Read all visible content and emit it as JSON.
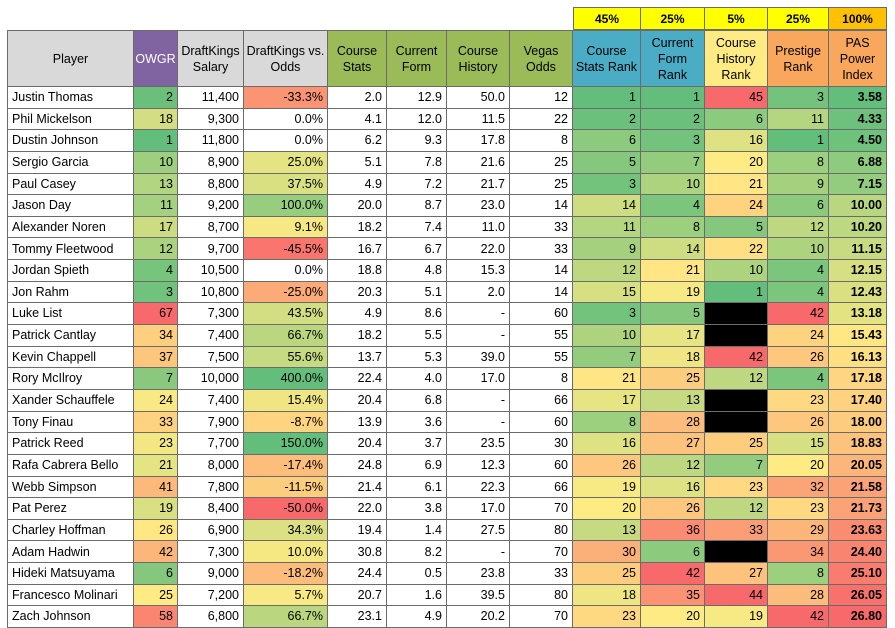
{
  "weights": {
    "course_stats": "45%",
    "current_form": "25%",
    "course_history": "5%",
    "prestige": "25%",
    "pas": "100%"
  },
  "headers": {
    "player": "Player",
    "owgr": "OWGR",
    "dk_salary": "DraftKings Salary",
    "dk_vs_odds": "DraftKings vs. Odds",
    "course_stats": "Course Stats",
    "current_form": "Current Form",
    "course_history": "Course History",
    "vegas_odds": "Vegas Odds",
    "course_stats_rank": "Course Stats Rank",
    "current_form_rank": "Current Form Rank",
    "course_history_rank": "Course History Rank",
    "prestige_rank": "Prestige Rank",
    "pas_power_index": "PAS Power Index"
  },
  "colors": {
    "header_bg": "#d9d9d9",
    "weights_bg": "#ffff00",
    "pas_weight_bg": "#ffc000",
    "owgr_header_bg": "#8064a2",
    "header_green": "#9bbb59",
    "header_teal": "#4bacc6",
    "header_yellow": "#ffeb84",
    "header_orange": "#f8a75d",
    "missing_cell": "#000000"
  },
  "rows": [
    {
      "player": "Justin Thomas",
      "owgr": "2",
      "salary": "11,400",
      "vs_odds": "-33.3%",
      "course_stats": "2.0",
      "current_form": "12.9",
      "course_history": "50.0",
      "vegas": "12",
      "cs_rank": "1",
      "cf_rank": "1",
      "ch_rank": "45",
      "prestige": "3",
      "pas": "3.58"
    },
    {
      "player": "Phil Mickelson",
      "owgr": "18",
      "salary": "9,300",
      "vs_odds": "0.0%",
      "course_stats": "4.1",
      "current_form": "12.0",
      "course_history": "11.5",
      "vegas": "22",
      "cs_rank": "2",
      "cf_rank": "2",
      "ch_rank": "6",
      "prestige": "11",
      "pas": "4.33"
    },
    {
      "player": "Dustin Johnson",
      "owgr": "1",
      "salary": "11,800",
      "vs_odds": "0.0%",
      "course_stats": "6.2",
      "current_form": "9.3",
      "course_history": "17.8",
      "vegas": "8",
      "cs_rank": "6",
      "cf_rank": "3",
      "ch_rank": "16",
      "prestige": "1",
      "pas": "4.50"
    },
    {
      "player": "Sergio Garcia",
      "owgr": "10",
      "salary": "8,900",
      "vs_odds": "25.0%",
      "course_stats": "5.1",
      "current_form": "7.8",
      "course_history": "21.6",
      "vegas": "25",
      "cs_rank": "5",
      "cf_rank": "7",
      "ch_rank": "20",
      "prestige": "8",
      "pas": "6.88"
    },
    {
      "player": "Paul Casey",
      "owgr": "13",
      "salary": "8,800",
      "vs_odds": "37.5%",
      "course_stats": "4.9",
      "current_form": "7.2",
      "course_history": "21.7",
      "vegas": "25",
      "cs_rank": "3",
      "cf_rank": "10",
      "ch_rank": "21",
      "prestige": "9",
      "pas": "7.15"
    },
    {
      "player": "Jason Day",
      "owgr": "11",
      "salary": "9,200",
      "vs_odds": "100.0%",
      "course_stats": "20.0",
      "current_form": "8.7",
      "course_history": "23.0",
      "vegas": "14",
      "cs_rank": "14",
      "cf_rank": "4",
      "ch_rank": "24",
      "prestige": "6",
      "pas": "10.00"
    },
    {
      "player": "Alexander Noren",
      "owgr": "17",
      "salary": "8,700",
      "vs_odds": "9.1%",
      "course_stats": "18.2",
      "current_form": "7.4",
      "course_history": "11.0",
      "vegas": "33",
      "cs_rank": "11",
      "cf_rank": "8",
      "ch_rank": "5",
      "prestige": "12",
      "pas": "10.20"
    },
    {
      "player": "Tommy Fleetwood",
      "owgr": "12",
      "salary": "9,700",
      "vs_odds": "-45.5%",
      "course_stats": "16.7",
      "current_form": "6.7",
      "course_history": "22.0",
      "vegas": "33",
      "cs_rank": "9",
      "cf_rank": "14",
      "ch_rank": "22",
      "prestige": "10",
      "pas": "11.15"
    },
    {
      "player": "Jordan Spieth",
      "owgr": "4",
      "salary": "10,500",
      "vs_odds": "0.0%",
      "course_stats": "18.8",
      "current_form": "4.8",
      "course_history": "15.3",
      "vegas": "14",
      "cs_rank": "12",
      "cf_rank": "21",
      "ch_rank": "10",
      "prestige": "4",
      "pas": "12.15"
    },
    {
      "player": "Jon Rahm",
      "owgr": "3",
      "salary": "10,800",
      "vs_odds": "-25.0%",
      "course_stats": "20.3",
      "current_form": "5.1",
      "course_history": "2.0",
      "vegas": "14",
      "cs_rank": "15",
      "cf_rank": "19",
      "ch_rank": "1",
      "prestige": "4",
      "pas": "12.43"
    },
    {
      "player": "Luke List",
      "owgr": "67",
      "salary": "7,300",
      "vs_odds": "43.5%",
      "course_stats": "4.9",
      "current_form": "8.6",
      "course_history": "-",
      "vegas": "60",
      "cs_rank": "3",
      "cf_rank": "5",
      "ch_rank": "",
      "prestige": "42",
      "pas": "13.18"
    },
    {
      "player": "Patrick Cantlay",
      "owgr": "34",
      "salary": "7,400",
      "vs_odds": "66.7%",
      "course_stats": "18.2",
      "current_form": "5.5",
      "course_history": "-",
      "vegas": "55",
      "cs_rank": "10",
      "cf_rank": "17",
      "ch_rank": "",
      "prestige": "24",
      "pas": "15.43"
    },
    {
      "player": "Kevin Chappell",
      "owgr": "37",
      "salary": "7,500",
      "vs_odds": "55.6%",
      "course_stats": "13.7",
      "current_form": "5.3",
      "course_history": "39.0",
      "vegas": "55",
      "cs_rank": "7",
      "cf_rank": "18",
      "ch_rank": "42",
      "prestige": "26",
      "pas": "16.13"
    },
    {
      "player": "Rory McIlroy",
      "owgr": "7",
      "salary": "10,000",
      "vs_odds": "400.0%",
      "course_stats": "22.4",
      "current_form": "4.0",
      "course_history": "17.0",
      "vegas": "8",
      "cs_rank": "21",
      "cf_rank": "25",
      "ch_rank": "12",
      "prestige": "4",
      "pas": "17.18"
    },
    {
      "player": "Xander Schauffele",
      "owgr": "24",
      "salary": "7,400",
      "vs_odds": "15.4%",
      "course_stats": "20.4",
      "current_form": "6.8",
      "course_history": "-",
      "vegas": "66",
      "cs_rank": "17",
      "cf_rank": "13",
      "ch_rank": "",
      "prestige": "23",
      "pas": "17.40"
    },
    {
      "player": "Tony Finau",
      "owgr": "33",
      "salary": "7,900",
      "vs_odds": "-8.7%",
      "course_stats": "13.9",
      "current_form": "3.6",
      "course_history": "-",
      "vegas": "60",
      "cs_rank": "8",
      "cf_rank": "28",
      "ch_rank": "",
      "prestige": "26",
      "pas": "18.00"
    },
    {
      "player": "Patrick Reed",
      "owgr": "23",
      "salary": "7,700",
      "vs_odds": "150.0%",
      "course_stats": "20.4",
      "current_form": "3.7",
      "course_history": "23.5",
      "vegas": "30",
      "cs_rank": "16",
      "cf_rank": "27",
      "ch_rank": "25",
      "prestige": "15",
      "pas": "18.83"
    },
    {
      "player": "Rafa Cabrera Bello",
      "owgr": "21",
      "salary": "8,000",
      "vs_odds": "-17.4%",
      "course_stats": "24.8",
      "current_form": "6.9",
      "course_history": "12.3",
      "vegas": "60",
      "cs_rank": "26",
      "cf_rank": "12",
      "ch_rank": "7",
      "prestige": "20",
      "pas": "20.05"
    },
    {
      "player": "Webb Simpson",
      "owgr": "41",
      "salary": "7,800",
      "vs_odds": "-11.5%",
      "course_stats": "21.4",
      "current_form": "6.1",
      "course_history": "22.3",
      "vegas": "66",
      "cs_rank": "19",
      "cf_rank": "16",
      "ch_rank": "23",
      "prestige": "32",
      "pas": "21.58"
    },
    {
      "player": "Pat Perez",
      "owgr": "19",
      "salary": "8,400",
      "vs_odds": "-50.0%",
      "course_stats": "22.0",
      "current_form": "3.8",
      "course_history": "17.0",
      "vegas": "70",
      "cs_rank": "20",
      "cf_rank": "26",
      "ch_rank": "12",
      "prestige": "23",
      "pas": "21.73"
    },
    {
      "player": "Charley Hoffman",
      "owgr": "26",
      "salary": "6,900",
      "vs_odds": "34.3%",
      "course_stats": "19.4",
      "current_form": "1.4",
      "course_history": "27.5",
      "vegas": "80",
      "cs_rank": "13",
      "cf_rank": "36",
      "ch_rank": "33",
      "prestige": "29",
      "pas": "23.63"
    },
    {
      "player": "Adam Hadwin",
      "owgr": "42",
      "salary": "7,300",
      "vs_odds": "10.0%",
      "course_stats": "30.8",
      "current_form": "8.2",
      "course_history": "-",
      "vegas": "70",
      "cs_rank": "30",
      "cf_rank": "6",
      "ch_rank": "",
      "prestige": "34",
      "pas": "24.40"
    },
    {
      "player": "Hideki Matsuyama",
      "owgr": "6",
      "salary": "9,000",
      "vs_odds": "-18.2%",
      "course_stats": "24.4",
      "current_form": "0.5",
      "course_history": "23.8",
      "vegas": "33",
      "cs_rank": "25",
      "cf_rank": "42",
      "ch_rank": "27",
      "prestige": "8",
      "pas": "25.10"
    },
    {
      "player": "Francesco Molinari",
      "owgr": "25",
      "salary": "7,200",
      "vs_odds": "5.7%",
      "course_stats": "20.7",
      "current_form": "1.6",
      "course_history": "39.5",
      "vegas": "80",
      "cs_rank": "18",
      "cf_rank": "35",
      "ch_rank": "44",
      "prestige": "28",
      "pas": "26.05"
    },
    {
      "player": "Zach Johnson",
      "owgr": "58",
      "salary": "6,800",
      "vs_odds": "66.7%",
      "course_stats": "23.1",
      "current_form": "4.9",
      "course_history": "20.2",
      "vegas": "70",
      "cs_rank": "23",
      "cf_rank": "20",
      "ch_rank": "19",
      "prestige": "42",
      "pas": "26.80"
    }
  ]
}
